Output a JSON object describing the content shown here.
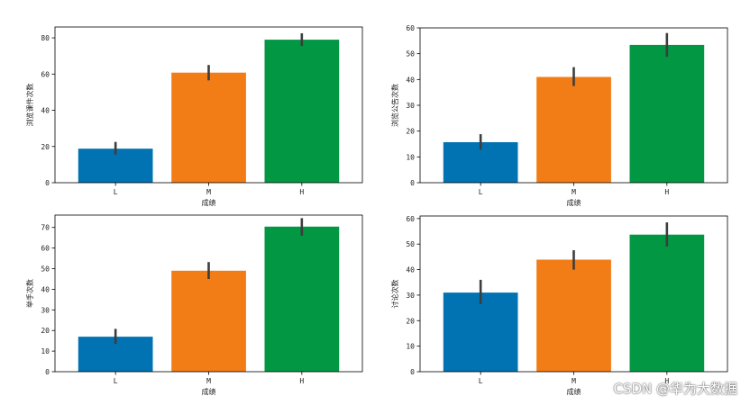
{
  "chart_data": [
    {
      "type": "bar",
      "categories": [
        "L",
        "M",
        "H"
      ],
      "values": [
        18.8,
        60.8,
        79.0
      ],
      "error": [
        [
          15.5,
          22.5
        ],
        [
          56.5,
          65.0
        ],
        [
          75.5,
          82.5
        ]
      ],
      "xlabel": "成绩",
      "ylabel": "浏览课件次数",
      "ylim": [
        0,
        86
      ],
      "yticks": [
        0,
        20,
        40,
        60,
        80
      ],
      "colors": [
        "#0173b2",
        "#f27c16",
        "#029743"
      ]
    },
    {
      "type": "bar",
      "categories": [
        "L",
        "M",
        "H"
      ],
      "values": [
        15.7,
        41.0,
        53.4
      ],
      "error": [
        [
          12.8,
          18.8
        ],
        [
          37.5,
          44.8
        ],
        [
          48.8,
          58.0
        ]
      ],
      "xlabel": "成绩",
      "ylabel": "浏览公告次数",
      "ylim": [
        0,
        60
      ],
      "yticks": [
        0,
        10,
        20,
        30,
        40,
        50,
        60
      ],
      "colors": [
        "#0173b2",
        "#f27c16",
        "#029743"
      ]
    },
    {
      "type": "bar",
      "categories": [
        "L",
        "M",
        "H"
      ],
      "values": [
        17.0,
        49.0,
        70.4
      ],
      "error": [
        [
          13.5,
          20.8
        ],
        [
          45.0,
          53.2
        ],
        [
          66.0,
          74.5
        ]
      ],
      "xlabel": "成绩",
      "ylabel": "举手次数",
      "ylim": [
        0,
        76
      ],
      "yticks": [
        0,
        10,
        20,
        30,
        40,
        50,
        60,
        70
      ],
      "colors": [
        "#0173b2",
        "#f27c16",
        "#029743"
      ]
    },
    {
      "type": "bar",
      "categories": [
        "L",
        "M",
        "H"
      ],
      "values": [
        31.0,
        43.9,
        53.7
      ],
      "error": [
        [
          26.5,
          36.0
        ],
        [
          40.0,
          47.6
        ],
        [
          49.0,
          58.5
        ]
      ],
      "xlabel": "成绩",
      "ylabel": "讨论次数",
      "ylim": [
        0,
        61
      ],
      "yticks": [
        0,
        10,
        20,
        30,
        40,
        50,
        60
      ],
      "colors": [
        "#0173b2",
        "#f27c16",
        "#029743"
      ]
    }
  ],
  "watermark": "CSDN @华为大数据"
}
